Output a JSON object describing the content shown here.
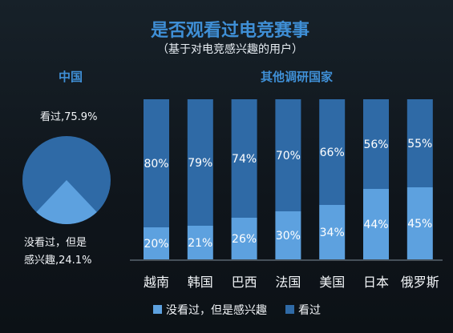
{
  "colors": {
    "seen": "#2f6aa6",
    "interested": "#5da1df",
    "title": "#3f8fd6",
    "text": "#f2f5f8"
  },
  "chart_data": [
    {
      "type": "pie",
      "title": "是否观看过电竞赛事",
      "subtitle": "（基于对电竞感兴趣的用户）",
      "heading": "中国",
      "slices": [
        {
          "name": "看过",
          "value": 75.9,
          "label": "看过,75.9%"
        },
        {
          "name": "没看过，但是感兴趣",
          "value": 24.1,
          "label_line1": "没看过，但是",
          "label_line2": "感兴趣,24.1%"
        }
      ]
    },
    {
      "type": "bar",
      "stacked": true,
      "orientation": "vertical",
      "heading": "其他调研国家",
      "categories": [
        "越南",
        "韩国",
        "巴西",
        "法国",
        "美国",
        "日本",
        "俄罗斯"
      ],
      "series": [
        {
          "name": "没看过，但是感兴趣",
          "values": [
            20,
            21,
            26,
            30,
            34,
            44,
            45
          ],
          "labels": [
            "20%",
            "21%",
            "26%",
            "30%",
            "34%",
            "44%",
            "45%"
          ]
        },
        {
          "name": "看过",
          "values": [
            80,
            79,
            74,
            70,
            66,
            56,
            55
          ],
          "labels": [
            "80%",
            "79%",
            "74%",
            "70%",
            "66%",
            "56%",
            "55%"
          ]
        }
      ],
      "ylim": [
        0,
        100
      ],
      "legend": "bottom-center",
      "grid": false
    }
  ]
}
